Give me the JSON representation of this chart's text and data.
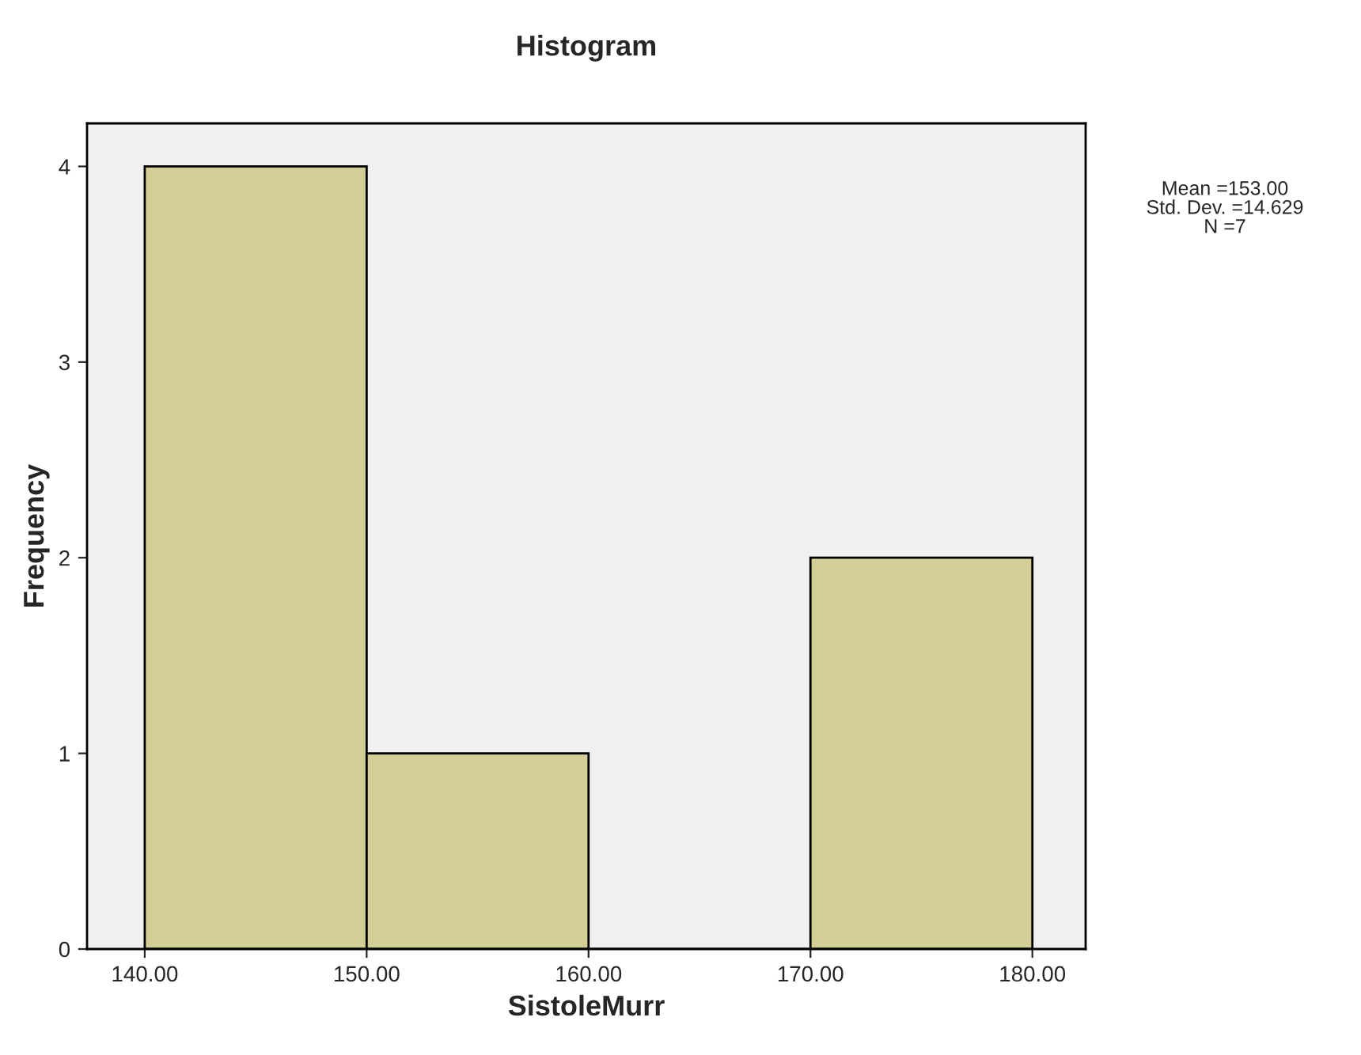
{
  "chart_data": {
    "type": "histogram",
    "title": "Histogram",
    "xlabel": "SistoleMurr",
    "ylabel": "Frequency",
    "bins": [
      140,
      150,
      160,
      170,
      180
    ],
    "values": [
      4,
      1,
      0,
      2
    ],
    "color": "#d3ce96",
    "xlim": [
      137.4,
      182.4
    ],
    "xticks": [
      {
        "value": 140,
        "label": "140.00"
      },
      {
        "value": 150,
        "label": "150.00"
      },
      {
        "value": 160,
        "label": "160.00"
      },
      {
        "value": 170,
        "label": "170.00"
      },
      {
        "value": 180,
        "label": "180.00"
      }
    ],
    "ylim": [
      0,
      4.22
    ],
    "yticks": [
      0,
      1,
      2,
      3,
      4
    ],
    "grid": false,
    "legend": false,
    "annotations": [
      "Mean =153.00",
      "Std. Dev. =14.629",
      "N =7"
    ]
  }
}
